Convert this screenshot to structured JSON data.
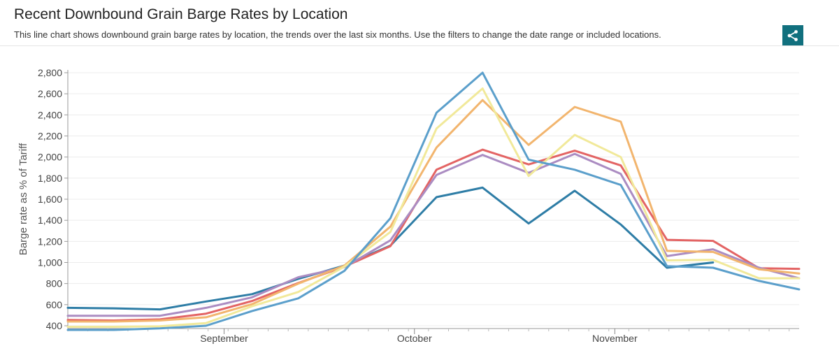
{
  "header": {
    "title": "Recent Downbound Grain Barge Rates by Location",
    "subtitle": "This line chart shows downbound grain barge rates by location, the trends over the last six months. Use the filters to change the date range or included locations."
  },
  "share_icon": "share-icon",
  "chart_data": {
    "type": "line",
    "title": "",
    "xlabel": "",
    "ylabel": "Barge rate as % of Tariff",
    "ylim": [
      400,
      2800
    ],
    "yticks": [
      400,
      600,
      800,
      1000,
      1200,
      1400,
      1600,
      1800,
      2000,
      2200,
      2400,
      2600,
      2800
    ],
    "ytick_labels": [
      "400",
      "600",
      "800",
      "1,000",
      "1,200",
      "1,400",
      "1,600",
      "1,800",
      "2,000",
      "2,200",
      "2,400",
      "2,600",
      "2,800"
    ],
    "x_ticks": [
      {
        "label": "September",
        "x": 7.8
      },
      {
        "label": "October",
        "x": 17.3
      },
      {
        "label": "November",
        "x": 27.3
      }
    ],
    "xlim": [
      0,
      36.5
    ],
    "grid": true,
    "series": [
      {
        "color": "#2e7da6",
        "points": [
          [
            0,
            570
          ],
          [
            2.3,
            565
          ],
          [
            4.6,
            555
          ],
          [
            6.9,
            630
          ],
          [
            9.2,
            700
          ],
          [
            11.5,
            845
          ],
          [
            13.8,
            970
          ],
          [
            16.1,
            1160
          ],
          [
            18.4,
            1620
          ],
          [
            20.7,
            1710
          ],
          [
            23.0,
            1370
          ],
          [
            25.3,
            1680
          ],
          [
            27.6,
            1360
          ],
          [
            29.9,
            950
          ],
          [
            32.2,
            1000
          ]
        ]
      },
      {
        "color": "#e36464",
        "points": [
          [
            0,
            455
          ],
          [
            2.3,
            450
          ],
          [
            4.6,
            460
          ],
          [
            6.9,
            515
          ],
          [
            9.2,
            635
          ],
          [
            11.5,
            805
          ],
          [
            13.8,
            960
          ],
          [
            16.1,
            1155
          ],
          [
            18.4,
            1880
          ],
          [
            20.7,
            2070
          ],
          [
            23.0,
            1930
          ],
          [
            25.3,
            2060
          ],
          [
            27.6,
            1920
          ],
          [
            29.9,
            1215
          ],
          [
            32.2,
            1205
          ],
          [
            34.5,
            945
          ],
          [
            36.5,
            940
          ]
        ]
      },
      {
        "color": "#ab8cc2",
        "points": [
          [
            0,
            495
          ],
          [
            2.3,
            495
          ],
          [
            4.6,
            495
          ],
          [
            6.9,
            570
          ],
          [
            9.2,
            670
          ],
          [
            11.5,
            860
          ],
          [
            13.8,
            955
          ],
          [
            16.1,
            1210
          ],
          [
            18.4,
            1830
          ],
          [
            20.7,
            2020
          ],
          [
            23.0,
            1850
          ],
          [
            25.3,
            2030
          ],
          [
            27.6,
            1840
          ],
          [
            29.9,
            1060
          ],
          [
            32.2,
            1125
          ],
          [
            34.5,
            950
          ],
          [
            36.5,
            850
          ]
        ]
      },
      {
        "color": "#f2b56e",
        "points": [
          [
            0,
            440
          ],
          [
            2.3,
            440
          ],
          [
            4.6,
            450
          ],
          [
            6.9,
            480
          ],
          [
            9.2,
            605
          ],
          [
            11.5,
            800
          ],
          [
            13.8,
            970
          ],
          [
            16.1,
            1340
          ],
          [
            18.4,
            2090
          ],
          [
            20.7,
            2540
          ],
          [
            23.0,
            2115
          ],
          [
            25.3,
            2475
          ],
          [
            27.6,
            2335
          ],
          [
            29.9,
            1110
          ],
          [
            32.2,
            1100
          ],
          [
            34.5,
            935
          ],
          [
            36.5,
            895
          ]
        ]
      },
      {
        "color": "#f1e99a",
        "points": [
          [
            0,
            390
          ],
          [
            2.3,
            390
          ],
          [
            4.6,
            395
          ],
          [
            6.9,
            425
          ],
          [
            9.2,
            585
          ],
          [
            11.5,
            720
          ],
          [
            13.8,
            960
          ],
          [
            16.1,
            1290
          ],
          [
            18.4,
            2270
          ],
          [
            20.7,
            2650
          ],
          [
            23.0,
            1820
          ],
          [
            25.3,
            2210
          ],
          [
            27.6,
            2000
          ],
          [
            29.9,
            1020
          ],
          [
            32.2,
            1025
          ],
          [
            34.5,
            850
          ],
          [
            36.5,
            850
          ]
        ]
      },
      {
        "color": "#5b9fcb",
        "points": [
          [
            0,
            360
          ],
          [
            2.3,
            360
          ],
          [
            4.6,
            375
          ],
          [
            6.9,
            400
          ],
          [
            9.2,
            540
          ],
          [
            11.5,
            660
          ],
          [
            13.8,
            920
          ],
          [
            16.1,
            1420
          ],
          [
            18.4,
            2420
          ],
          [
            20.7,
            2800
          ],
          [
            23.0,
            1975
          ],
          [
            25.3,
            1880
          ],
          [
            27.6,
            1735
          ],
          [
            29.9,
            965
          ],
          [
            32.2,
            950
          ],
          [
            34.5,
            825
          ],
          [
            36.5,
            745
          ]
        ]
      }
    ]
  }
}
